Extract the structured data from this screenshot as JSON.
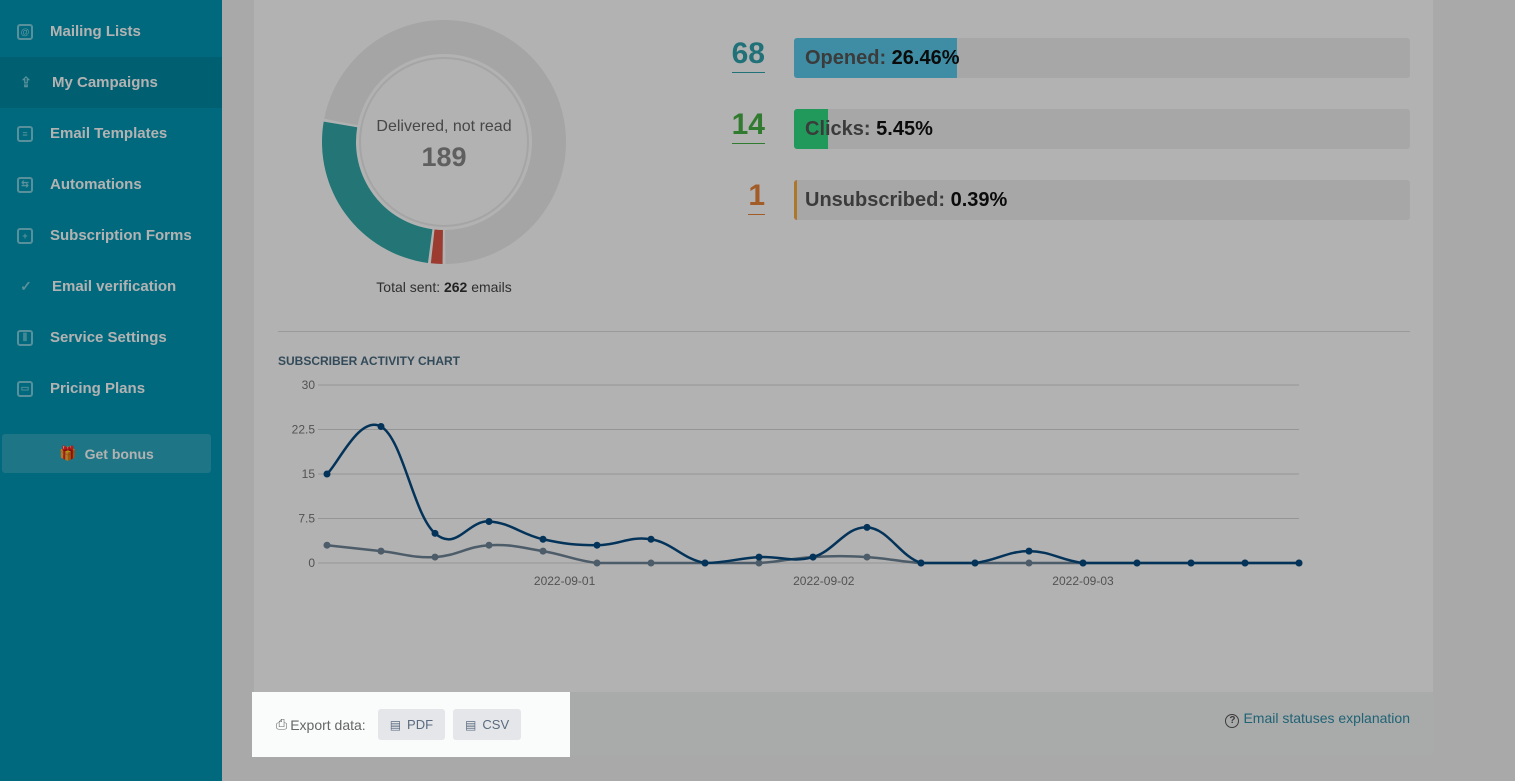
{
  "sidebar": {
    "items": [
      {
        "label": "Mailing Lists",
        "icon": "address-book-icon"
      },
      {
        "label": "My Campaigns",
        "icon": "upload-tray-icon",
        "active": true
      },
      {
        "label": "Email Templates",
        "icon": "template-icon"
      },
      {
        "label": "Automations",
        "icon": "automation-icon"
      },
      {
        "label": "Subscription Forms",
        "icon": "form-icon"
      },
      {
        "label": "Email verification",
        "icon": "check-circle-icon"
      },
      {
        "label": "Service Settings",
        "icon": "sliders-icon"
      },
      {
        "label": "Pricing Plans",
        "icon": "wallet-icon"
      }
    ],
    "bonus": "Get bonus"
  },
  "donut": {
    "label": "Delivered, not read",
    "value": "189",
    "total_prefix": "Total sent: ",
    "total": "262",
    "total_suffix": " emails",
    "segments": [
      {
        "name": "other",
        "value": 5,
        "color": "#e05545"
      },
      {
        "name": "opened",
        "value": 68,
        "color": "#33a9a8"
      },
      {
        "name": "delivered-not-read",
        "value": 189,
        "color": "#ececec"
      }
    ]
  },
  "stats": [
    {
      "num": "68",
      "label": "Opened: ",
      "pct": "26.46%",
      "fraction": 0.2646,
      "color": "#2fa3ac",
      "fill": "#5acbed"
    },
    {
      "num": "14",
      "label": "Clicks: ",
      "pct": "5.45%",
      "fraction": 0.0545,
      "color": "#45b045",
      "fill": "#2fdc83"
    },
    {
      "num": "1",
      "label": "Unsubscribed: ",
      "pct": "0.39%",
      "fraction": 0.0039,
      "color": "#e8843a",
      "fill": "#f7a941"
    }
  ],
  "chart_data": {
    "type": "line",
    "title": "SUBSCRIBER ACTIVITY CHART",
    "ylim": [
      0,
      30
    ],
    "yticks": [
      "0",
      "7.5",
      "15",
      "22.5",
      "30"
    ],
    "xticks": [
      {
        "label": "2022-09-01",
        "pos": 4.4
      },
      {
        "label": "2022-09-02",
        "pos": 9.2
      },
      {
        "label": "2022-09-03",
        "pos": 14
      }
    ],
    "series": [
      {
        "name": "series-1",
        "color": "#064a80",
        "values": [
          15,
          23,
          5,
          7,
          4,
          3,
          4,
          0,
          1,
          1,
          6,
          0,
          0,
          2,
          0,
          0,
          0,
          0,
          0
        ]
      },
      {
        "name": "series-2",
        "color": "#6f8597",
        "values": [
          3,
          2,
          1,
          3,
          2,
          0,
          0,
          0,
          0,
          1,
          1,
          0,
          0,
          0,
          0,
          0,
          0,
          0,
          0
        ]
      }
    ]
  },
  "footer": {
    "export_label": "Export data:",
    "pdf": "PDF",
    "csv": "CSV",
    "help": "Email statuses explanation"
  }
}
